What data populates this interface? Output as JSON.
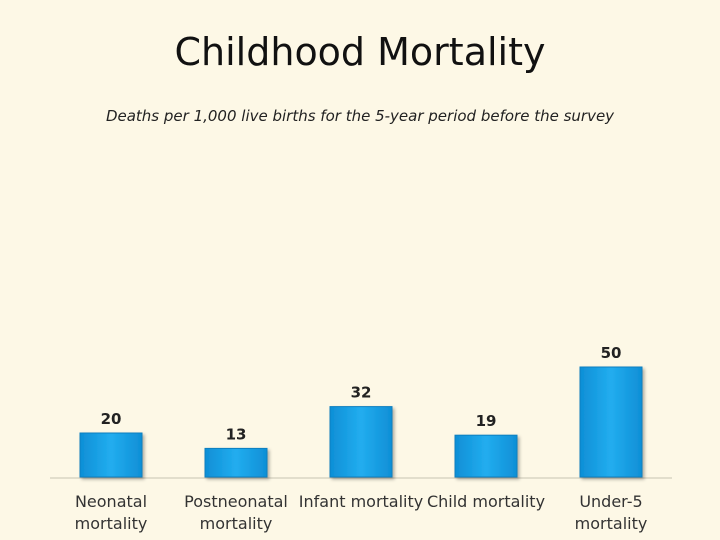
{
  "chart_data": {
    "type": "bar",
    "title": "Childhood Mortality",
    "subtitle": "Deaths per 1,000 live births for the 5-year period before the survey",
    "categories": [
      [
        "Neonatal",
        "mortality"
      ],
      [
        "Postneonatal",
        "mortality"
      ],
      [
        "Infant mortality"
      ],
      [
        "Child mortality"
      ],
      [
        "Under-5",
        "mortality"
      ]
    ],
    "values": [
      20,
      13,
      32,
      19,
      50
    ],
    "data_labels": [
      "20",
      "13",
      "32",
      "19",
      "50"
    ],
    "ylim": [
      0,
      50
    ],
    "grid": false,
    "legend": "none",
    "bar_color": "#1aa3e8",
    "bar_edge_color": "#0a7fc0"
  }
}
